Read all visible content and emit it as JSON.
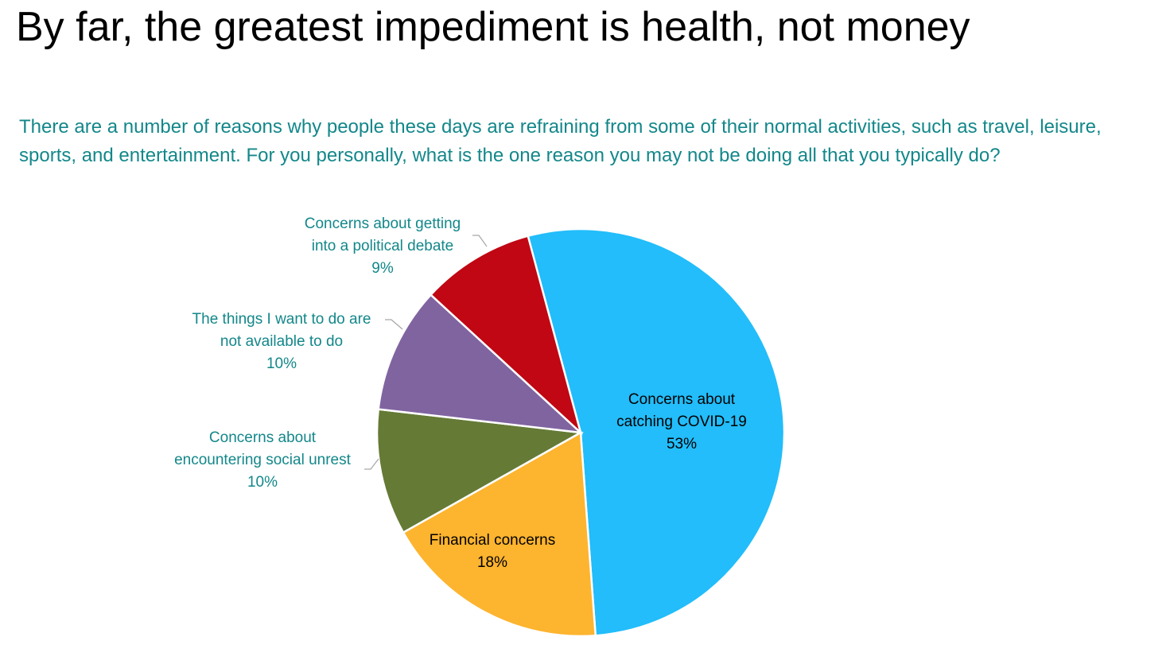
{
  "title": "By far, the greatest impediment is health, not money",
  "subtitle": "There are a number of reasons why people these days are refraining from some of their normal activities, such as travel, leisure, sports, and entertainment. For you personally, what is the one reason you may not be doing all that you typically do?",
  "colors": {
    "outside_label": "#13878a",
    "inside_label": "#000000",
    "leader_line": "#a6a6a6"
  },
  "chart_data": {
    "type": "pie",
    "start_angle_deg": -15,
    "direction": "clockwise",
    "slices": [
      {
        "label": "Concerns about catching COVID-19",
        "label_lines": [
          "Concerns about",
          "catching COVID-19"
        ],
        "value": 53,
        "pct_text": "53%",
        "color": "#22bdfa",
        "label_placement": "inside"
      },
      {
        "label": "Financial concerns",
        "label_lines": [
          "Financial concerns"
        ],
        "value": 18,
        "pct_text": "18%",
        "color": "#fdb42f",
        "label_placement": "inside"
      },
      {
        "label": "Concerns about encountering social unrest",
        "label_lines": [
          "Concerns about",
          "encountering social unrest"
        ],
        "value": 10,
        "pct_text": "10%",
        "color": "#657a35",
        "label_placement": "outside"
      },
      {
        "label": "The things I want to do are not available to do",
        "label_lines": [
          "The things I want to do are",
          "not available to do"
        ],
        "value": 10,
        "pct_text": "10%",
        "color": "#8064a0",
        "label_placement": "outside"
      },
      {
        "label": "Concerns about getting into a political debate",
        "label_lines": [
          "Concerns about getting",
          "into a political debate"
        ],
        "value": 9,
        "pct_text": "9%",
        "color": "#c00713",
        "label_placement": "outside"
      }
    ]
  }
}
